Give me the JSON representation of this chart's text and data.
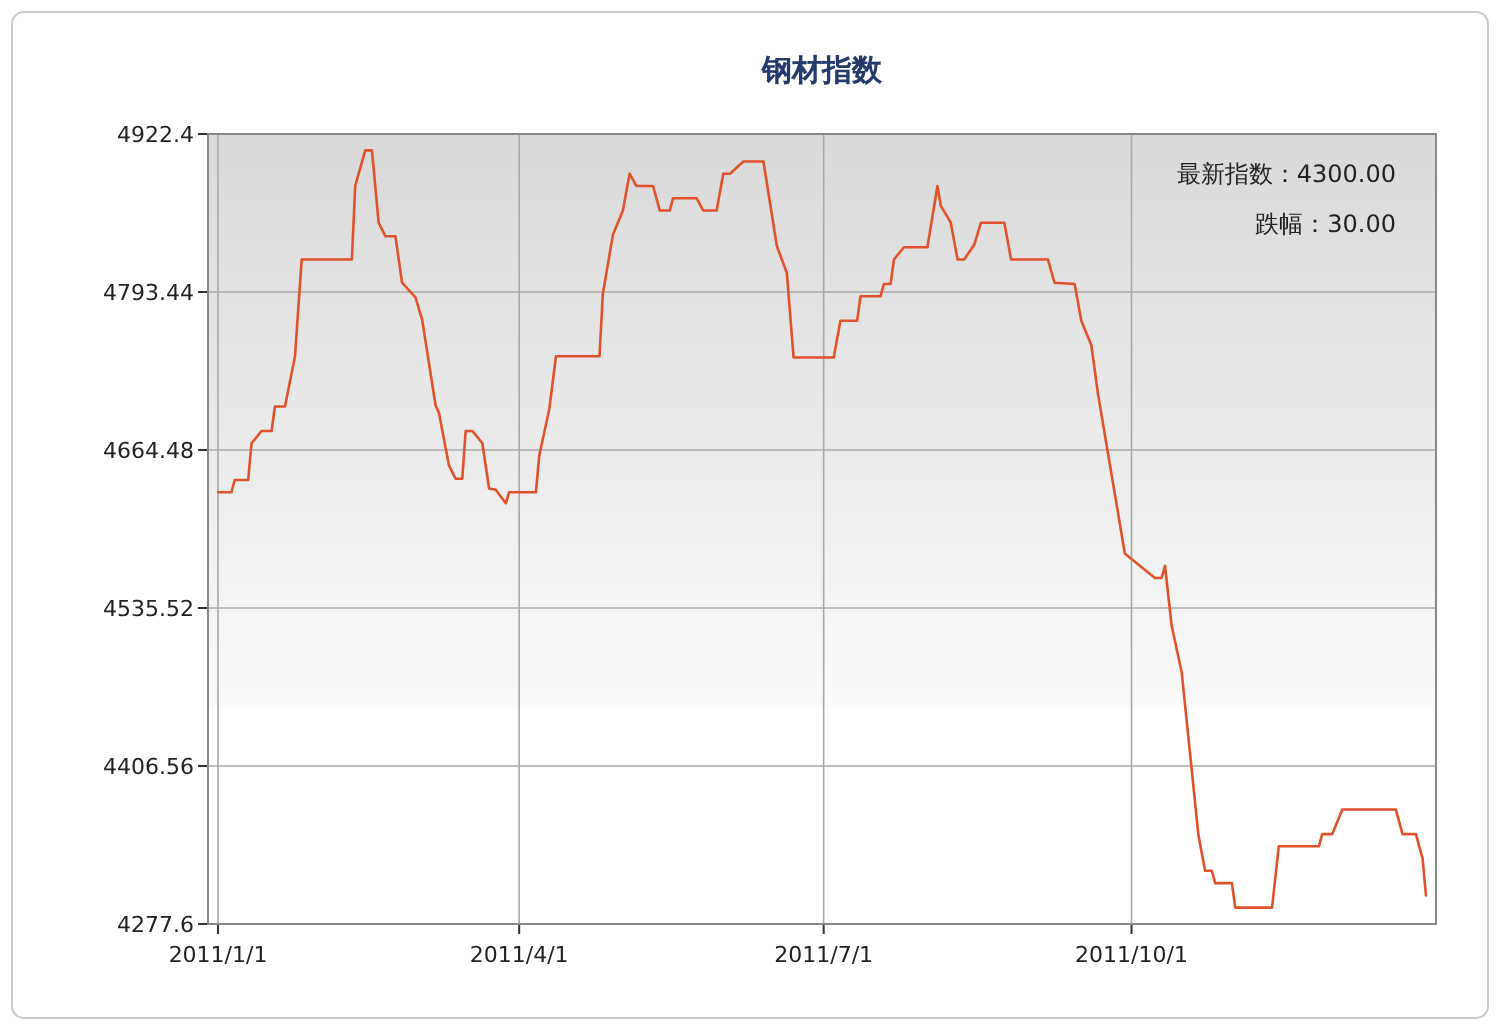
{
  "chart_data": {
    "type": "line",
    "title": "钢材指数",
    "annotations": [
      "最新指数：4300.00",
      "跌幅：30.00"
    ],
    "x": [
      "2011-01-01",
      "2011-01-05",
      "2011-01-06",
      "2011-01-10",
      "2011-01-11",
      "2011-01-14",
      "2011-01-17",
      "2011-01-18",
      "2011-01-21",
      "2011-01-24",
      "2011-01-26",
      "2011-02-10",
      "2011-02-11",
      "2011-02-14",
      "2011-02-16",
      "2011-02-18",
      "2011-02-20",
      "2011-02-23",
      "2011-02-25",
      "2011-03-01",
      "2011-03-03",
      "2011-03-07",
      "2011-03-08",
      "2011-03-11",
      "2011-03-13",
      "2011-03-15",
      "2011-03-16",
      "2011-03-18",
      "2011-03-21",
      "2011-03-23",
      "2011-03-25",
      "2011-03-28",
      "2011-03-29",
      "2011-04-06",
      "2011-04-07",
      "2011-04-10",
      "2011-04-12",
      "2011-04-25",
      "2011-04-26",
      "2011-04-29",
      "2011-05-02",
      "2011-05-04",
      "2011-05-06",
      "2011-05-11",
      "2011-05-13",
      "2011-05-16",
      "2011-05-17",
      "2011-05-24",
      "2011-05-26",
      "2011-05-30",
      "2011-06-01",
      "2011-06-03",
      "2011-06-07",
      "2011-06-13",
      "2011-06-17",
      "2011-06-20",
      "2011-06-22",
      "2011-07-04",
      "2011-07-06",
      "2011-07-11",
      "2011-07-12",
      "2011-07-18",
      "2011-07-19",
      "2011-07-21",
      "2011-07-22",
      "2011-07-25",
      "2011-08-01",
      "2011-08-04",
      "2011-08-05",
      "2011-08-08",
      "2011-08-10",
      "2011-08-12",
      "2011-08-15",
      "2011-08-17",
      "2011-08-24",
      "2011-08-26",
      "2011-09-06",
      "2011-09-08",
      "2011-09-14",
      "2011-09-16",
      "2011-09-19",
      "2011-09-21",
      "2011-09-29",
      "2011-10-08",
      "2011-10-10",
      "2011-10-11",
      "2011-10-13",
      "2011-10-16",
      "2011-10-21",
      "2011-10-23",
      "2011-10-25",
      "2011-10-26",
      "2011-10-31",
      "2011-11-01",
      "2011-11-12",
      "2011-11-14",
      "2011-11-26",
      "2011-11-27",
      "2011-11-30",
      "2011-12-03",
      "2011-12-19",
      "2011-12-21",
      "2011-12-25",
      "2011-12-27",
      "2011-12-28"
    ],
    "series": [
      {
        "color": "#e0522a",
        "values": [
          4630,
          4630,
          4640,
          4640,
          4670,
          4680,
          4680,
          4700,
          4700,
          4741,
          4820,
          4820,
          4880,
          4909,
          4909,
          4850,
          4839,
          4839,
          4801,
          4789,
          4771,
          4701,
          4695,
          4652,
          4641,
          4641,
          4680,
          4680,
          4670,
          4633,
          4632,
          4621,
          4630,
          4630,
          4660,
          4698,
          4741,
          4741,
          4792,
          4840,
          4860,
          4890,
          4880,
          4880,
          4860,
          4860,
          4870,
          4870,
          4860,
          4860,
          4890,
          4890,
          4900,
          4900,
          4831,
          4809,
          4740,
          4740,
          4770,
          4770,
          4790,
          4790,
          4800,
          4800,
          4820,
          4830,
          4830,
          4880,
          4864,
          4850,
          4820,
          4820,
          4832,
          4850,
          4850,
          4820,
          4820,
          4801,
          4800,
          4770,
          4750,
          4710,
          4580,
          4560,
          4560,
          4570,
          4521,
          4483,
          4350,
          4321,
          4321,
          4311,
          4311,
          4291,
          4291,
          4341,
          4341,
          4351,
          4351,
          4371,
          4371,
          4351,
          4351,
          4331,
          4301
        ]
      }
    ],
    "xlim": [
      "2010-12-29",
      "2011-12-31"
    ],
    "xticks": [
      {
        "value": "2011-01-01",
        "label": "2011/1/1"
      },
      {
        "value": "2011-04-01",
        "label": "2011/4/1"
      },
      {
        "value": "2011-07-01",
        "label": "2011/7/1"
      },
      {
        "value": "2011-10-01",
        "label": "2011/10/1"
      }
    ],
    "ylim": [
      4277.6,
      4922.4
    ],
    "yticks": [
      4277.6,
      4406.56,
      4535.52,
      4664.48,
      4793.44,
      4922.4
    ],
    "grid": true,
    "marker": "none",
    "line_style": "solid"
  }
}
